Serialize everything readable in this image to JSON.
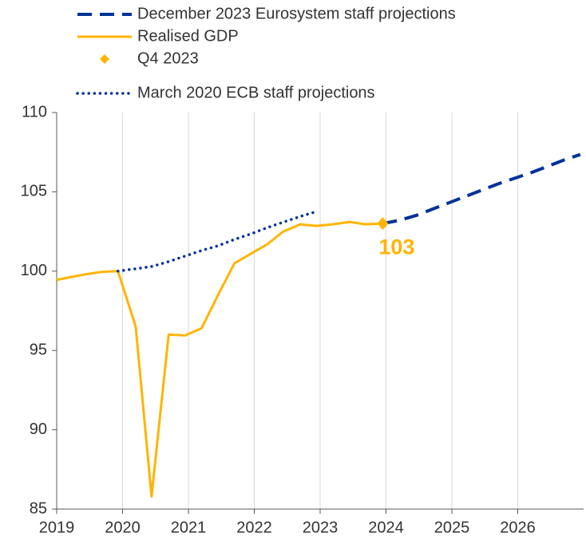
{
  "chart_data": {
    "type": "line",
    "xlim": [
      2019,
      2027
    ],
    "xticks": [
      2019,
      2020,
      2021,
      2022,
      2023,
      2024,
      2025,
      2026
    ],
    "ylim": [
      85,
      110
    ],
    "yticks": [
      85,
      90,
      95,
      100,
      105,
      110
    ],
    "grid": "x",
    "legend": "top-left",
    "series": [
      {
        "name": "December 2023 Eurosystem staff projections",
        "color": "#003299",
        "style": "dashed",
        "x": [
          2023.95,
          2024.2,
          2024.45,
          2024.7,
          2024.95,
          2025.2,
          2025.45,
          2025.7,
          2025.95,
          2026.2,
          2026.45,
          2026.7,
          2026.95
        ],
        "values": [
          103.0,
          103.2,
          103.5,
          103.9,
          104.3,
          104.7,
          105.1,
          105.5,
          105.85,
          106.2,
          106.6,
          107.0,
          107.35
        ]
      },
      {
        "name": "Realised GDP",
        "color": "#ffb400",
        "style": "solid",
        "x": [
          2019.0,
          2019.18,
          2019.44,
          2019.68,
          2019.93,
          2020.2,
          2020.44,
          2020.7,
          2020.95,
          2021.2,
          2021.45,
          2021.7,
          2021.95,
          2022.2,
          2022.44,
          2022.7,
          2022.94,
          2023.19,
          2023.45,
          2023.69,
          2023.95
        ],
        "values": [
          99.45,
          99.6,
          99.8,
          99.95,
          100.0,
          96.5,
          85.8,
          96.0,
          95.95,
          96.4,
          98.5,
          100.5,
          101.1,
          101.7,
          102.5,
          102.95,
          102.85,
          102.95,
          103.1,
          102.95,
          103.0
        ]
      },
      {
        "name": "Q4 2023",
        "color": "#ffb400",
        "style": "marker",
        "x": [
          2023.95
        ],
        "values": [
          103
        ]
      },
      {
        "name": "March 2020 ECB staff projections",
        "color": "#003299",
        "style": "dotted",
        "x": [
          2019.93,
          2020.2,
          2020.45,
          2020.7,
          2020.95,
          2021.2,
          2021.45,
          2021.7,
          2021.95,
          2022.2,
          2022.45,
          2022.7,
          2022.9
        ],
        "values": [
          100.0,
          100.15,
          100.3,
          100.6,
          100.95,
          101.3,
          101.6,
          102.0,
          102.35,
          102.75,
          103.1,
          103.45,
          103.7
        ]
      }
    ]
  }
}
